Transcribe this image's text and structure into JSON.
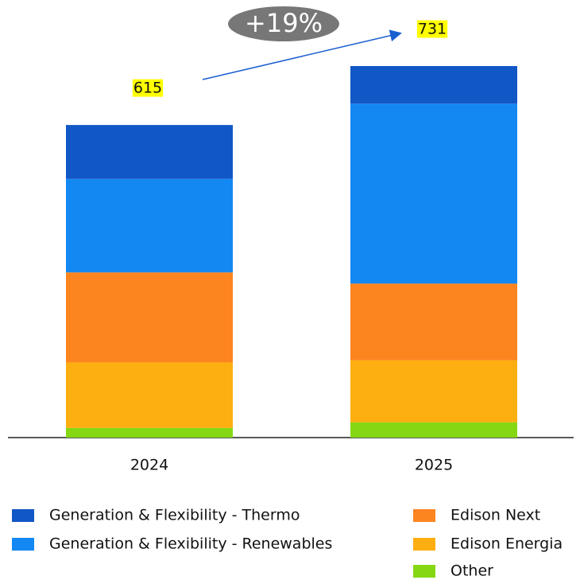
{
  "chart_data": {
    "type": "stacked-bar",
    "categories": [
      "2024",
      "2025"
    ],
    "series": [
      {
        "name": "Generation & Flexibility - Thermo",
        "color": "#1257c6",
        "values": [
          106,
          74
        ]
      },
      {
        "name": "Generation & Flexibility - Renewables",
        "color": "#1488f2",
        "values": [
          184,
          354
        ]
      },
      {
        "name": "Edison Next",
        "color": "#fd8520",
        "values": [
          177,
          151
        ]
      },
      {
        "name": "Edison Energia",
        "color": "#fdae10",
        "values": [
          129,
          122
        ]
      },
      {
        "name": "Other",
        "color": "#85d714",
        "values": [
          19,
          30
        ]
      }
    ],
    "totals": [
      615,
      731
    ],
    "annotation": "+19%"
  }
}
